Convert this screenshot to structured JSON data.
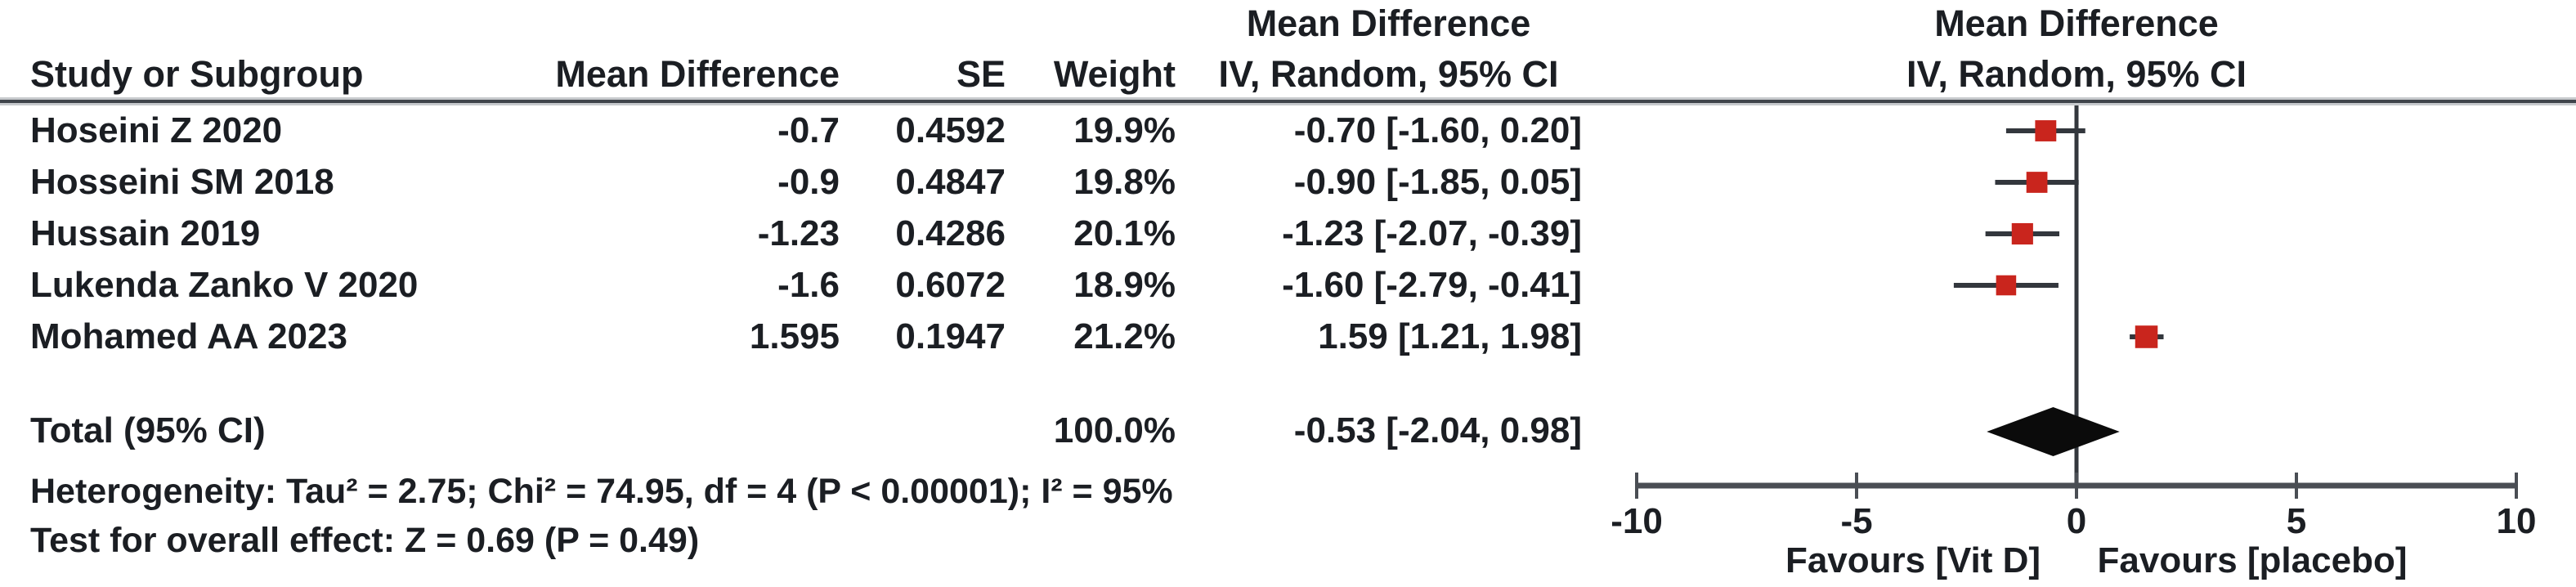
{
  "table": {
    "columns": {
      "study": "Study or Subgroup",
      "md": "Mean Difference",
      "se": "SE",
      "weight": "Weight",
      "ci": "IV, Random, 95% CI"
    },
    "right_header": {
      "line1": "Mean Difference",
      "line2": "IV, Random, 95% CI"
    },
    "studies": [
      {
        "name": "Hoseini Z 2020",
        "md": "-0.7",
        "se": "0.4592",
        "weight": "19.9%",
        "ci": "-0.70 [-1.60, 0.20]"
      },
      {
        "name": "Hosseini SM 2018",
        "md": "-0.9",
        "se": "0.4847",
        "weight": "19.8%",
        "ci": "-0.90 [-1.85, 0.05]"
      },
      {
        "name": "Hussain 2019",
        "md": "-1.23",
        "se": "0.4286",
        "weight": "20.1%",
        "ci": "-1.23 [-2.07, -0.39]"
      },
      {
        "name": "Lukenda Zanko V 2020",
        "md": "-1.6",
        "se": "0.6072",
        "weight": "18.9%",
        "ci": "-1.60 [-2.79, -0.41]"
      },
      {
        "name": "Mohamed AA 2023",
        "md": "1.595",
        "se": "0.1947",
        "weight": "21.2%",
        "ci": "1.59 [1.21, 1.98]"
      }
    ],
    "total": {
      "label": "Total (95% CI)",
      "weight": "100.0%",
      "ci": "-0.53 [-2.04, 0.98]"
    },
    "heterogeneity": "Heterogeneity: Tau² = 2.75; Chi² = 74.95, df = 4 (P < 0.00001); I² = 95%",
    "overall_effect": "Test for overall effect: Z = 0.69 (P = 0.49)"
  },
  "chart_data": {
    "type": "forest",
    "effect_measure": "Mean Difference",
    "model": "IV, Random, 95% CI",
    "studies": [
      {
        "name": "Hoseini Z 2020",
        "md": -0.7,
        "lo": -1.6,
        "hi": 0.2,
        "weight": 19.9
      },
      {
        "name": "Hosseini SM 2018",
        "md": -0.9,
        "lo": -1.85,
        "hi": 0.05,
        "weight": 19.8
      },
      {
        "name": "Hussain 2019",
        "md": -1.23,
        "lo": -2.07,
        "hi": -0.39,
        "weight": 20.1
      },
      {
        "name": "Lukenda Zanko V 2020",
        "md": -1.6,
        "lo": -2.79,
        "hi": -0.41,
        "weight": 18.9
      },
      {
        "name": "Mohamed AA 2023",
        "md": 1.59,
        "lo": 1.21,
        "hi": 1.98,
        "weight": 21.2
      }
    ],
    "total": {
      "md": -0.53,
      "lo": -2.04,
      "hi": 0.98
    },
    "heterogeneity": {
      "tau2": 2.75,
      "chi2": 74.95,
      "df": 4,
      "p": "< 0.00001",
      "i2": "95%"
    },
    "overall_effect_test": {
      "z": 0.69,
      "p": 0.49
    },
    "axis": {
      "min": -10,
      "max": 10,
      "ticks": [
        -10,
        -5,
        0,
        5,
        10
      ],
      "tick_labels": [
        "-10",
        "-5",
        "0",
        "5",
        "10"
      ],
      "left_label": "Favours [Vit D]",
      "right_label": "Favours [placebo]"
    },
    "colors": {
      "marker": "#c9251d",
      "diamond": "#0b0b0b",
      "line": "#33373d",
      "axis": "#4a4e54",
      "text": "#1b1e23"
    }
  }
}
